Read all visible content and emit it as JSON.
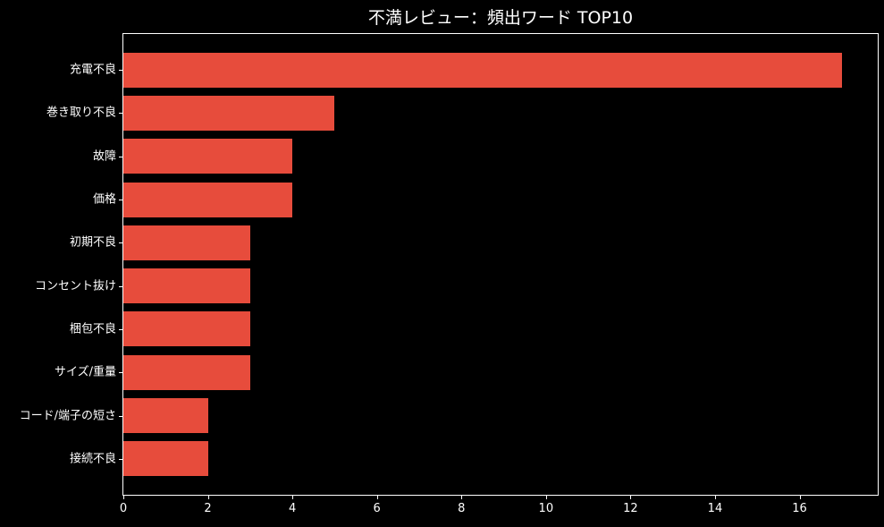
{
  "chart_data": {
    "type": "bar",
    "orientation": "horizontal",
    "title": "不満レビュー：頻出ワード TOP10",
    "categories": [
      "充電不良",
      "巻き取り不良",
      "故障",
      "価格",
      "初期不良",
      "コンセント抜け",
      "梱包不良",
      "サイズ/重量",
      "コード/端子の短さ",
      "接続不良"
    ],
    "values": [
      17,
      5,
      4,
      4,
      3,
      3,
      3,
      3,
      2,
      2
    ],
    "x_ticks": [
      0,
      2,
      4,
      6,
      8,
      10,
      12,
      14,
      16
    ],
    "xlim": [
      0,
      17.85
    ],
    "xlabel": "",
    "ylabel": "",
    "grid": false,
    "legend": null,
    "bar_color": "#e74c3c",
    "background_color": "#000000",
    "text_color": "#ffffff",
    "spine_color": "#ffffff"
  }
}
